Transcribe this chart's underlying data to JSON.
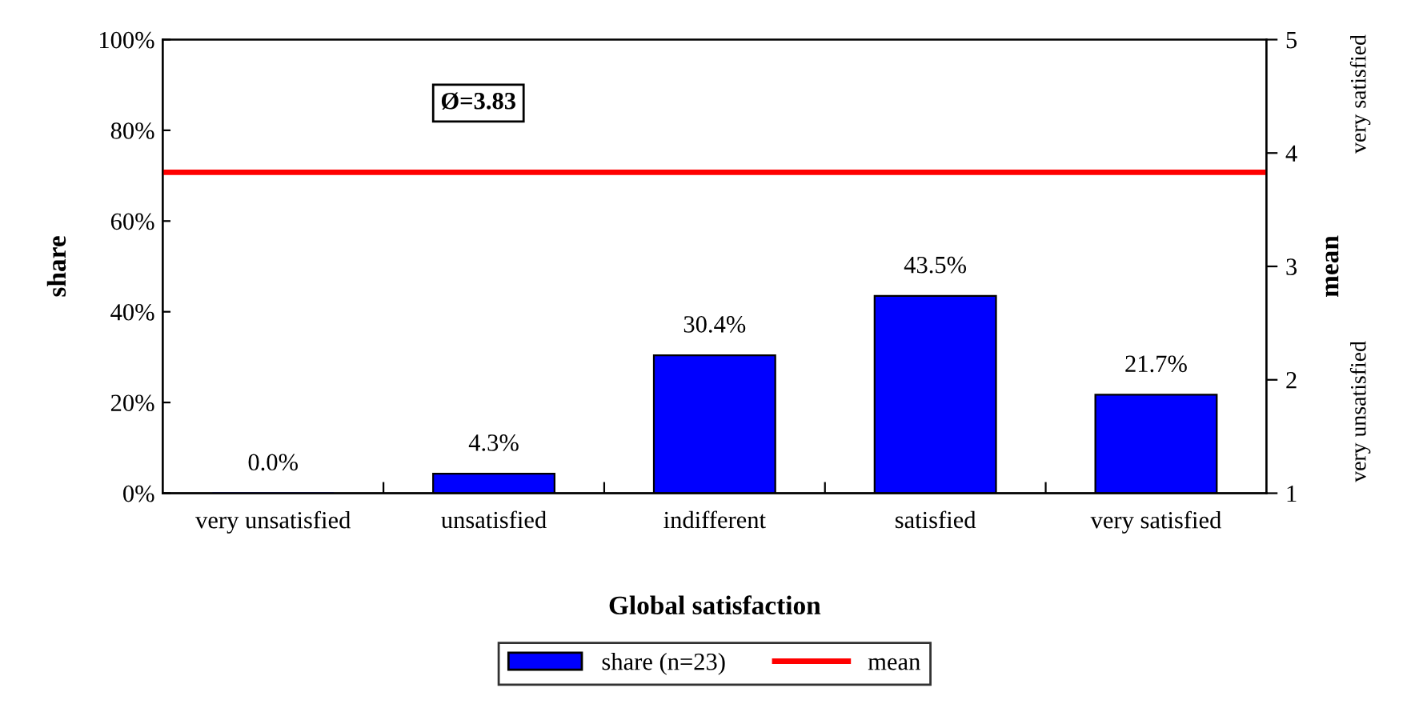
{
  "chart_data": {
    "type": "bar",
    "xlabel": "Global satisfaction",
    "ylabel": "share",
    "y2label": "mean",
    "categories": [
      "very unsatisfied",
      "unsatisfied",
      "indifferent",
      "satisfied",
      "very satisfied"
    ],
    "series": [
      {
        "name": "share (n=23)",
        "color": "#0000ff",
        "values": [
          0.0,
          4.3,
          30.4,
          43.5,
          21.7
        ],
        "value_labels": [
          "0.0%",
          "4.3%",
          "30.4%",
          "43.5%",
          "21.7%"
        ]
      }
    ],
    "ylim": [
      0,
      100
    ],
    "yticks": [
      {
        "value": 0,
        "label": "0%"
      },
      {
        "value": 20,
        "label": "20%"
      },
      {
        "value": 40,
        "label": "40%"
      },
      {
        "value": 60,
        "label": "60%"
      },
      {
        "value": 80,
        "label": "80%"
      },
      {
        "value": 100,
        "label": "100%"
      }
    ],
    "y2lim": [
      1,
      5
    ],
    "y2ticks": [
      1,
      2,
      3,
      4,
      5
    ],
    "ref_lines": [
      {
        "axis": "y2",
        "value": 3.83,
        "label": "mean",
        "color": "#ff0000"
      }
    ],
    "annotations": [
      "Ø=3.83",
      "very satisfied",
      "very unsatisfied"
    ],
    "legend": "bottom",
    "grid": false
  }
}
